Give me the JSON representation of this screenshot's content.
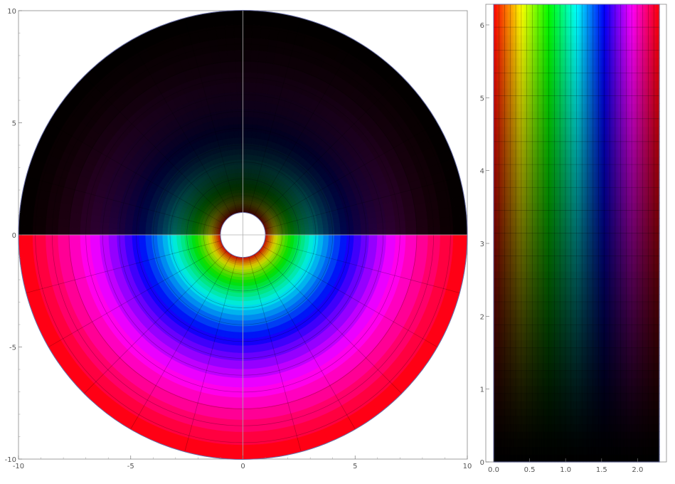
{
  "chart_data": [
    {
      "type": "heatmap",
      "subtype": "polar-domain-coloring",
      "title": "",
      "xlabel": "",
      "ylabel": "",
      "xlim": [
        -10,
        10
      ],
      "ylim": [
        -10,
        10
      ],
      "x_ticks": [
        -10,
        -5,
        0,
        5,
        10
      ],
      "y_ticks": [
        -10,
        -5,
        0,
        5,
        10
      ],
      "x_tick_labels": [
        "-10",
        "-5",
        "0",
        "5",
        "10"
      ],
      "y_tick_labels": [
        "-10",
        "-5",
        "0",
        "5",
        "10"
      ],
      "inner_radius": 1,
      "outer_radius": 10,
      "radial_lines": 24,
      "radial_gridlines": [
        1,
        1.75,
        2.5,
        3.25,
        4,
        4.75,
        5.5,
        6.25,
        7,
        7.75,
        8.5,
        9.25,
        10
      ],
      "hue_cycles_over_log_radius": 1,
      "brightness": "dark in upper half plane, full in lower half plane",
      "grid": true
    },
    {
      "type": "heatmap",
      "subtype": "rectangular-domain-coloring",
      "title": "",
      "xlabel": "",
      "ylabel": "",
      "xlim": [
        0,
        2.3026
      ],
      "ylim": [
        0,
        6.2832
      ],
      "x_ticks": [
        0.0,
        0.5,
        1.0,
        1.5,
        2.0
      ],
      "y_ticks": [
        0,
        1,
        2,
        3,
        4,
        5,
        6
      ],
      "x_tick_labels": [
        "0.0",
        "0.5",
        "1.0",
        "1.5",
        "2.0"
      ],
      "y_tick_labels": [
        "0",
        "1",
        "2",
        "3",
        "4",
        "5",
        "6"
      ],
      "columns": 30,
      "rows": 20,
      "hue_spectrum": [
        "#ff0000",
        "#ff8000",
        "#ffff00",
        "#00ff00",
        "#00ffff",
        "#0000ff",
        "#ff00ff",
        "#ff0000"
      ],
      "grid": true
    }
  ]
}
